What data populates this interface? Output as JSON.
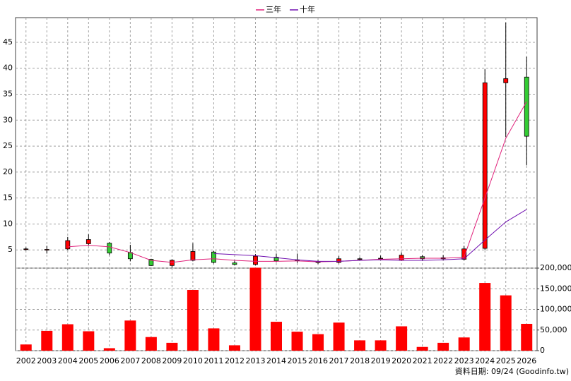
{
  "chart_data": {
    "type": "candlestick",
    "categories": [
      "2002",
      "2003",
      "2004",
      "2005",
      "2006",
      "2007",
      "2008",
      "2009",
      "2010",
      "2011",
      "2012",
      "2013",
      "2014",
      "2015",
      "2016",
      "2017",
      "2018",
      "2019",
      "2020",
      "2021",
      "2022",
      "2023",
      "2024",
      "2025",
      "2026"
    ],
    "open": [
      5.1,
      5.0,
      5.2,
      6.2,
      6.3,
      4.5,
      3.2,
      2.0,
      3.0,
      4.6,
      2.5,
      2.2,
      3.6,
      3.1,
      2.7,
      2.6,
      3.2,
      3.3,
      3.0,
      3.7,
      3.3,
      3.2,
      5.3,
      37.2,
      38.3
    ],
    "high": [
      5.5,
      5.8,
      7.5,
      8.0,
      6.5,
      6.0,
      3.3,
      3.2,
      6.3,
      4.8,
      2.9,
      4.2,
      4.3,
      4.3,
      3.0,
      3.8,
      3.6,
      3.9,
      4.5,
      4.0,
      4.0,
      5.8,
      39.8,
      48.8,
      42.2
    ],
    "low": [
      4.9,
      4.3,
      5.0,
      5.8,
      4.0,
      2.8,
      1.9,
      1.6,
      2.8,
      2.4,
      2.0,
      2.0,
      2.6,
      2.5,
      2.3,
      2.4,
      3.0,
      3.0,
      2.9,
      2.9,
      3.0,
      3.0,
      5.0,
      26.8,
      21.3
    ],
    "close": [
      5.2,
      5.1,
      6.8,
      7.0,
      4.4,
      3.3,
      2.0,
      3.0,
      4.7,
      2.6,
      2.2,
      3.8,
      2.9,
      3.0,
      2.6,
      3.3,
      3.3,
      3.4,
      4.0,
      3.3,
      3.5,
      5.2,
      37.2,
      38.0,
      26.9
    ],
    "up_color": "#ff0000",
    "down_color": "#33cc33",
    "series": [
      {
        "name": "三年",
        "color": "#e0207a",
        "values": [
          null,
          null,
          5.6,
          5.9,
          5.6,
          4.5,
          3.0,
          2.6,
          3.1,
          3.3,
          3.0,
          2.8,
          2.8,
          2.9,
          2.7,
          2.8,
          3.0,
          3.2,
          3.3,
          3.4,
          3.4,
          3.6,
          15.0,
          26.5,
          33.6
        ]
      },
      {
        "name": "十年",
        "color": "#7010b0",
        "values": [
          null,
          null,
          null,
          null,
          null,
          null,
          null,
          null,
          null,
          4.3,
          4.1,
          3.9,
          3.5,
          3.1,
          2.8,
          2.8,
          3.0,
          3.1,
          3.0,
          3.0,
          3.1,
          3.3,
          6.9,
          10.4,
          12.8
        ]
      }
    ],
    "ylim": [
      1.5,
      49.75
    ],
    "yticks": [
      5,
      10,
      15,
      20,
      25,
      30,
      35,
      40,
      45
    ],
    "volume": {
      "color": "#ff0000",
      "values": [
        15000,
        48000,
        64000,
        47000,
        6000,
        73000,
        33000,
        19000,
        147000,
        54000,
        13000,
        201000,
        70000,
        46000,
        40000,
        68000,
        25000,
        25000,
        59000,
        9000,
        19000,
        32000,
        164000,
        134000,
        65000
      ],
      "ylim": [
        0,
        200000
      ],
      "yticks": [
        0,
        {
          "value": 50000,
          "label": "50,000"
        },
        {
          "value": 100000,
          "label": "100,000"
        },
        {
          "value": 150000,
          "label": "150,000"
        },
        {
          "value": 200000,
          "label": "200,000"
        }
      ]
    },
    "grid": true,
    "source": "資料日期: 09/24 (Goodinfo.tw)"
  }
}
